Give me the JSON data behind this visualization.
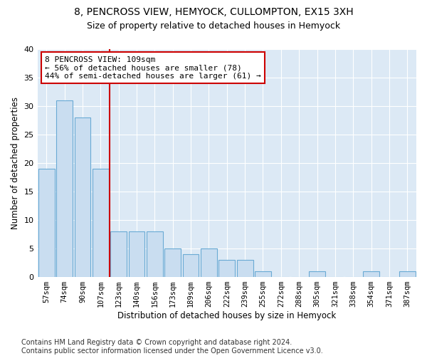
{
  "title1": "8, PENCROSS VIEW, HEMYOCK, CULLOMPTON, EX15 3XH",
  "title2": "Size of property relative to detached houses in Hemyock",
  "xlabel": "Distribution of detached houses by size in Hemyock",
  "ylabel": "Number of detached properties",
  "categories": [
    "57sqm",
    "74sqm",
    "90sqm",
    "107sqm",
    "123sqm",
    "140sqm",
    "156sqm",
    "173sqm",
    "189sqm",
    "206sqm",
    "222sqm",
    "239sqm",
    "255sqm",
    "272sqm",
    "288sqm",
    "305sqm",
    "321sqm",
    "338sqm",
    "354sqm",
    "371sqm",
    "387sqm"
  ],
  "values": [
    19,
    31,
    28,
    19,
    8,
    8,
    8,
    5,
    4,
    5,
    3,
    3,
    1,
    0,
    0,
    1,
    0,
    0,
    1,
    0,
    1
  ],
  "bar_color": "#c9ddf0",
  "bar_edge_color": "#6aaad4",
  "vline_color": "#cc0000",
  "annotation_text": "8 PENCROSS VIEW: 109sqm\n← 56% of detached houses are smaller (78)\n44% of semi-detached houses are larger (61) →",
  "annotation_box_color": "#ffffff",
  "annotation_box_edge": "#cc0000",
  "ylim": [
    0,
    40
  ],
  "yticks": [
    0,
    5,
    10,
    15,
    20,
    25,
    30,
    35,
    40
  ],
  "footer": "Contains HM Land Registry data © Crown copyright and database right 2024.\nContains public sector information licensed under the Open Government Licence v3.0.",
  "plot_bg_color": "#dce9f5",
  "title1_fontsize": 10,
  "title2_fontsize": 9,
  "xlabel_fontsize": 8.5,
  "ylabel_fontsize": 8.5,
  "footer_fontsize": 7
}
